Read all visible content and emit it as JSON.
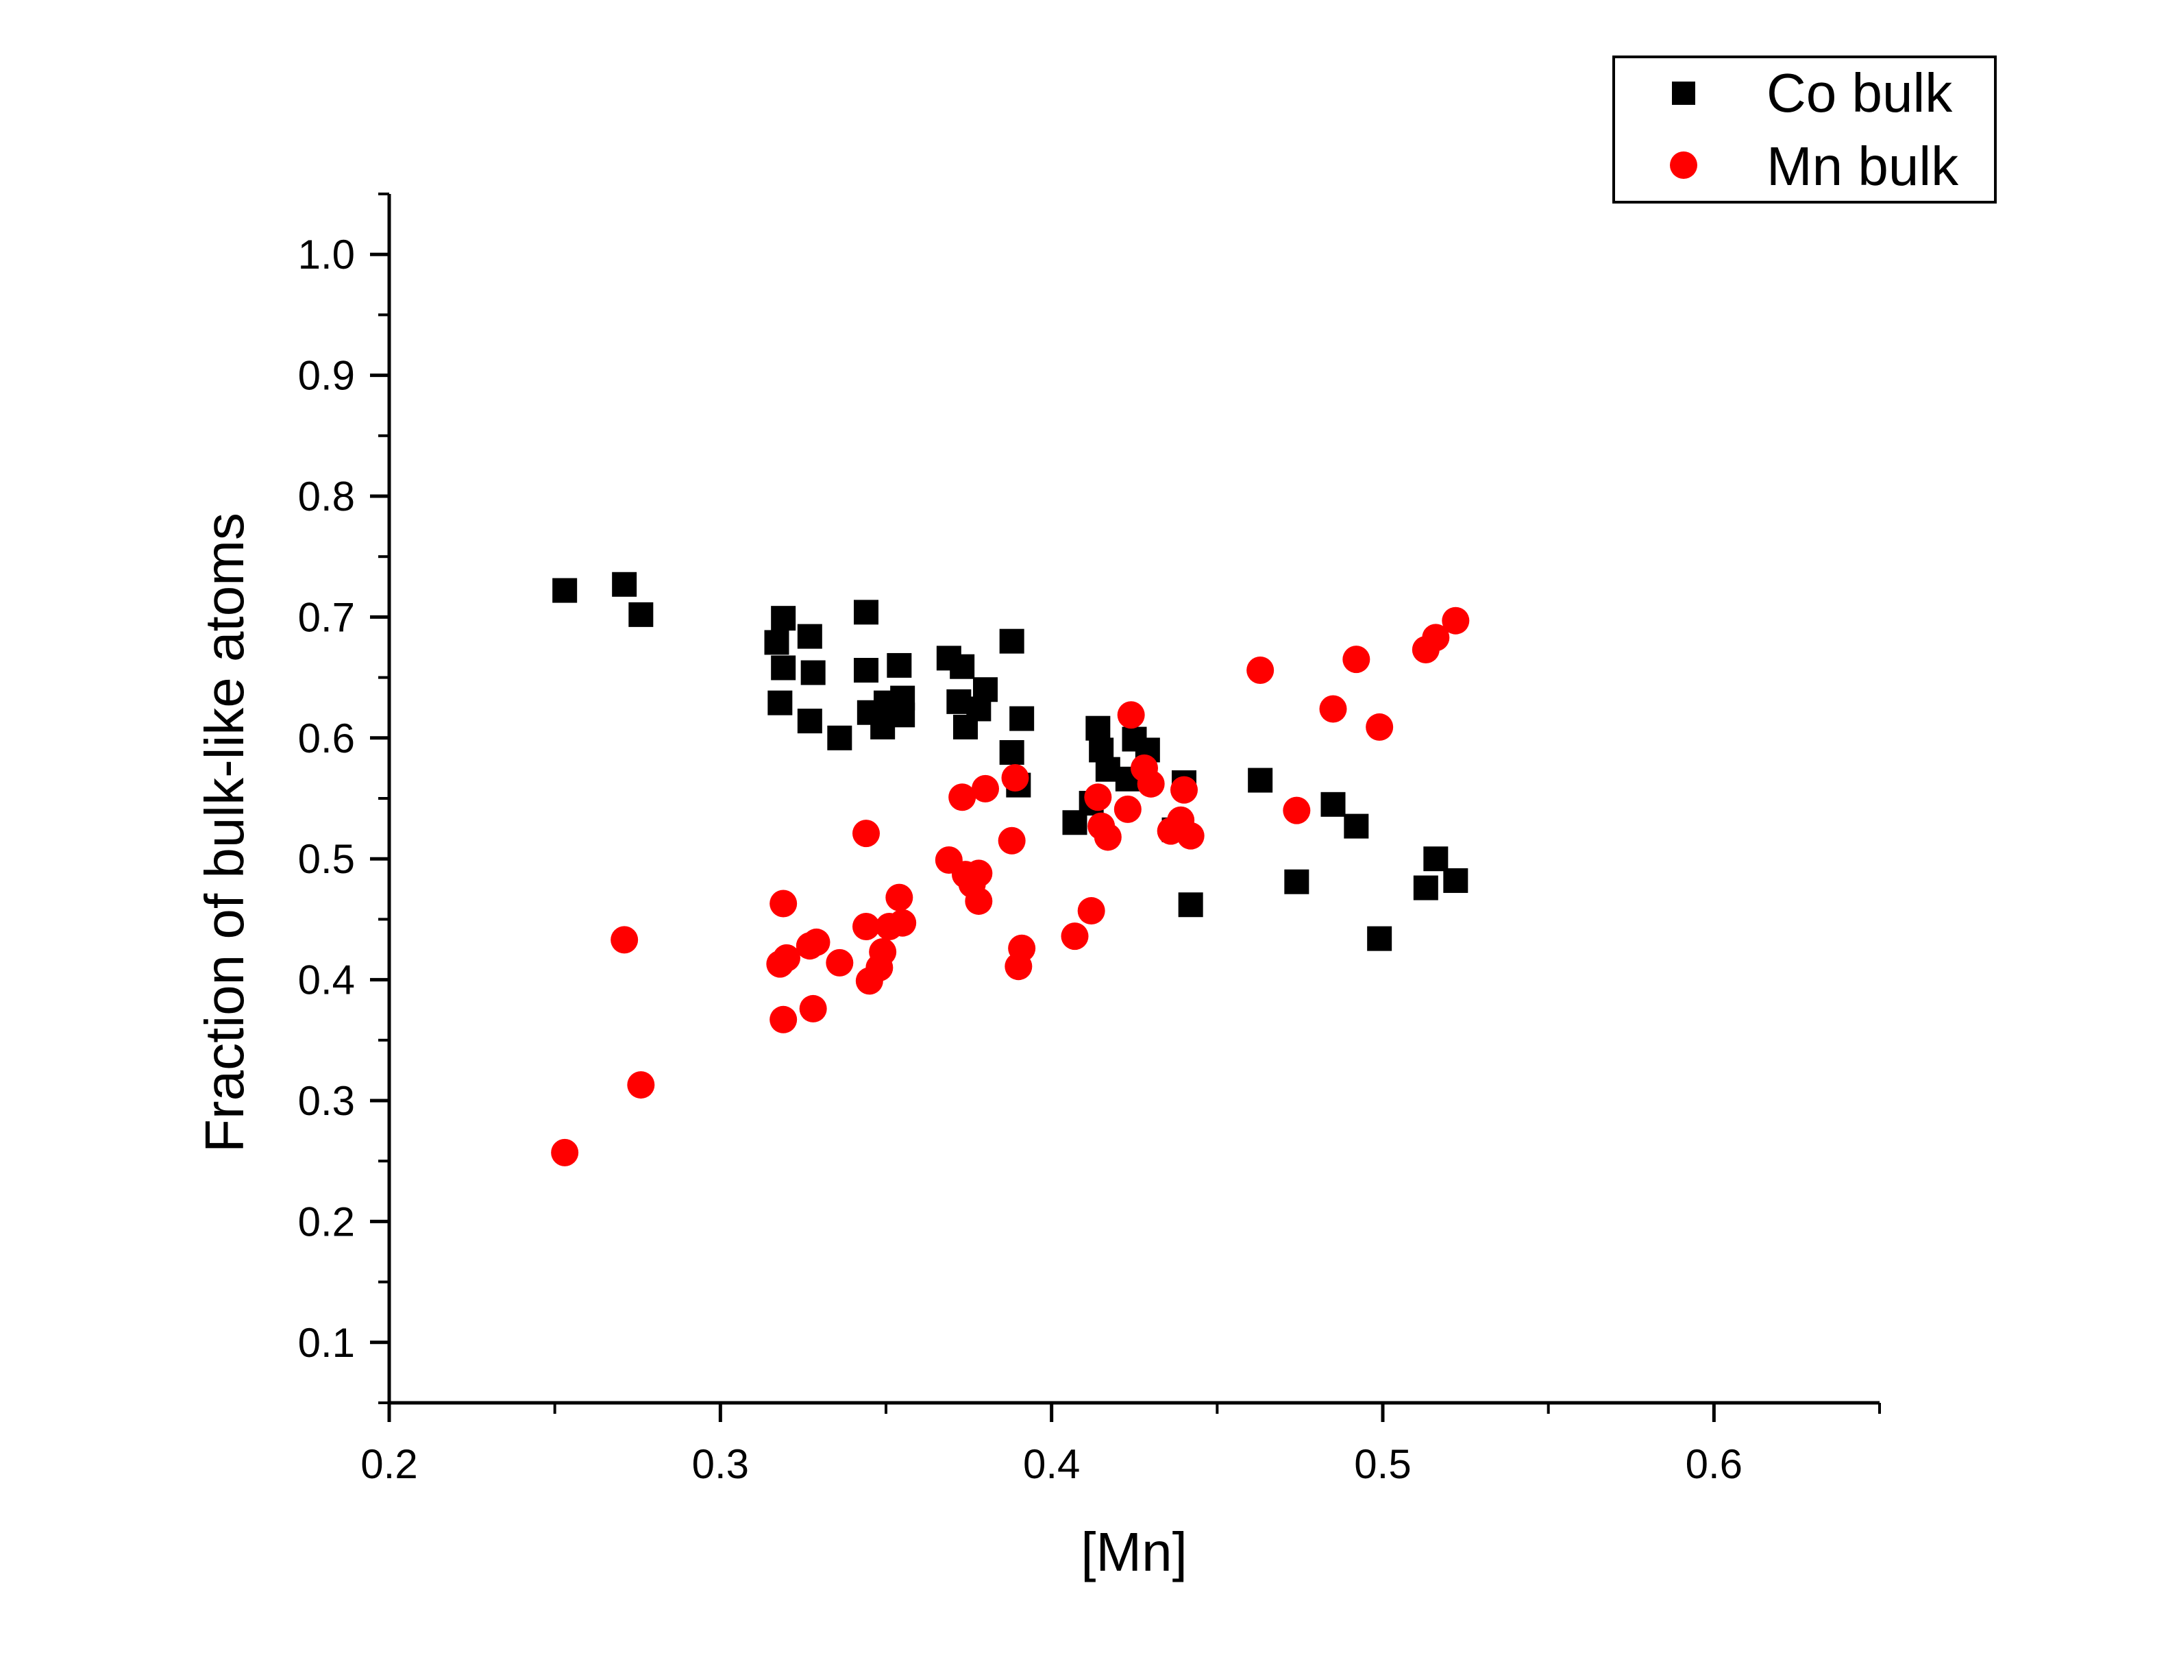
{
  "chart_data": {
    "type": "scatter",
    "title": "",
    "xlabel": "[Mn]",
    "ylabel": "Fraction of bulk-like atoms",
    "xlim": [
      0.2,
      0.65
    ],
    "ylim": [
      0.05,
      1.05
    ],
    "x_ticks": [
      0.2,
      0.3,
      0.4,
      0.5,
      0.6
    ],
    "x_tick_labels": [
      "0.2",
      "0.3",
      "0.4",
      "0.5",
      "0.6"
    ],
    "y_ticks": [
      0.1,
      0.2,
      0.3,
      0.4,
      0.5,
      0.6,
      0.7,
      0.8,
      0.9,
      1.0
    ],
    "y_tick_labels": [
      "0.1",
      "0.2",
      "0.3",
      "0.4",
      "0.5",
      "0.6",
      "0.7",
      "0.8",
      "0.9",
      "1.0"
    ],
    "grid": false,
    "legend_position": "top-right",
    "series": [
      {
        "name": "Co bulk",
        "marker": "square",
        "color": "#000000",
        "points": [
          [
            0.253,
            0.722
          ],
          [
            0.271,
            0.727
          ],
          [
            0.276,
            0.702
          ],
          [
            0.317,
            0.679
          ],
          [
            0.319,
            0.699
          ],
          [
            0.319,
            0.658
          ],
          [
            0.318,
            0.629
          ],
          [
            0.327,
            0.684
          ],
          [
            0.328,
            0.654
          ],
          [
            0.327,
            0.614
          ],
          [
            0.336,
            0.6
          ],
          [
            0.344,
            0.704
          ],
          [
            0.344,
            0.656
          ],
          [
            0.345,
            0.621
          ],
          [
            0.349,
            0.609
          ],
          [
            0.35,
            0.629
          ],
          [
            0.354,
            0.66
          ],
          [
            0.355,
            0.633
          ],
          [
            0.355,
            0.619
          ],
          [
            0.369,
            0.666
          ],
          [
            0.373,
            0.659
          ],
          [
            0.372,
            0.63
          ],
          [
            0.374,
            0.609
          ],
          [
            0.378,
            0.624
          ],
          [
            0.38,
            0.64
          ],
          [
            0.388,
            0.68
          ],
          [
            0.388,
            0.588
          ],
          [
            0.391,
            0.616
          ],
          [
            0.39,
            0.561
          ],
          [
            0.407,
            0.53
          ],
          [
            0.412,
            0.546
          ],
          [
            0.414,
            0.608
          ],
          [
            0.415,
            0.59
          ],
          [
            0.417,
            0.574
          ],
          [
            0.423,
            0.566
          ],
          [
            0.425,
            0.599
          ],
          [
            0.429,
            0.59
          ],
          [
            0.437,
            0.524
          ],
          [
            0.44,
            0.563
          ],
          [
            0.442,
            0.462
          ],
          [
            0.463,
            0.565
          ],
          [
            0.474,
            0.481
          ],
          [
            0.485,
            0.545
          ],
          [
            0.492,
            0.527
          ],
          [
            0.499,
            0.434
          ],
          [
            0.513,
            0.476
          ],
          [
            0.516,
            0.5
          ],
          [
            0.522,
            0.482
          ]
        ]
      },
      {
        "name": "Mn bulk",
        "marker": "circle",
        "color": "#ff0000",
        "points": [
          [
            0.253,
            0.257
          ],
          [
            0.271,
            0.433
          ],
          [
            0.276,
            0.313
          ],
          [
            0.318,
            0.413
          ],
          [
            0.319,
            0.367
          ],
          [
            0.319,
            0.463
          ],
          [
            0.32,
            0.418
          ],
          [
            0.327,
            0.428
          ],
          [
            0.328,
            0.376
          ],
          [
            0.329,
            0.431
          ],
          [
            0.336,
            0.414
          ],
          [
            0.344,
            0.521
          ],
          [
            0.344,
            0.444
          ],
          [
            0.345,
            0.399
          ],
          [
            0.348,
            0.41
          ],
          [
            0.349,
            0.423
          ],
          [
            0.351,
            0.444
          ],
          [
            0.354,
            0.468
          ],
          [
            0.355,
            0.447
          ],
          [
            0.369,
            0.499
          ],
          [
            0.373,
            0.551
          ],
          [
            0.374,
            0.487
          ],
          [
            0.376,
            0.479
          ],
          [
            0.378,
            0.488
          ],
          [
            0.378,
            0.465
          ],
          [
            0.38,
            0.558
          ],
          [
            0.388,
            0.515
          ],
          [
            0.389,
            0.567
          ],
          [
            0.39,
            0.411
          ],
          [
            0.391,
            0.426
          ],
          [
            0.407,
            0.436
          ],
          [
            0.412,
            0.457
          ],
          [
            0.414,
            0.551
          ],
          [
            0.415,
            0.527
          ],
          [
            0.417,
            0.518
          ],
          [
            0.423,
            0.541
          ],
          [
            0.424,
            0.619
          ],
          [
            0.428,
            0.575
          ],
          [
            0.43,
            0.562
          ],
          [
            0.436,
            0.523
          ],
          [
            0.439,
            0.532
          ],
          [
            0.44,
            0.557
          ],
          [
            0.442,
            0.519
          ],
          [
            0.463,
            0.656
          ],
          [
            0.474,
            0.54
          ],
          [
            0.485,
            0.624
          ],
          [
            0.492,
            0.665
          ],
          [
            0.499,
            0.609
          ],
          [
            0.513,
            0.673
          ],
          [
            0.516,
            0.683
          ],
          [
            0.522,
            0.697
          ]
        ]
      }
    ]
  }
}
